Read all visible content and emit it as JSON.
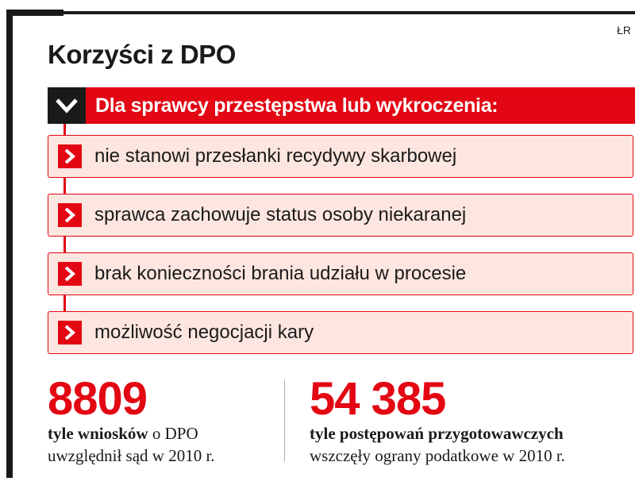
{
  "credit": "ŁR",
  "title": "Korzyści z DPO",
  "header": {
    "label": "Dla sprawcy przestępstwa lub wykroczenia:",
    "icon": "chevron-down-icon"
  },
  "items": [
    {
      "label": "nie stanowi przesłanki recydywy skarbowej",
      "icon": "chevron-right-icon"
    },
    {
      "label": "sprawca zachowuje status osoby niekaranej",
      "icon": "chevron-right-icon"
    },
    {
      "label": "brak konieczności brania udziału w procesie",
      "icon": "chevron-right-icon"
    },
    {
      "label": "możliwość negocjacji kary",
      "icon": "chevron-right-icon"
    }
  ],
  "stats": [
    {
      "number": "8809",
      "bold": "tyle wniosków",
      "rest": " o DPO",
      "line2": "uwzględnił sąd w 2010 r."
    },
    {
      "number": "54 385",
      "bold": "tyle postępowań przygotowawczych",
      "rest": "",
      "line2": "wszczęły ograny podatkowe w 2010 r."
    }
  ],
  "colors": {
    "accent": "#e30613",
    "item_bg": "#fde6df",
    "frame": "#1a1a1a"
  }
}
